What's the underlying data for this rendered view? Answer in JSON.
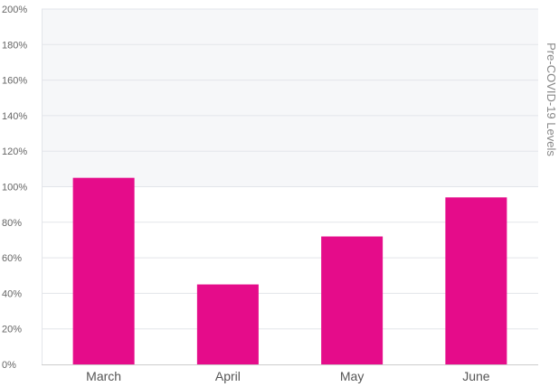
{
  "chart_data": {
    "type": "bar",
    "categories": [
      "March",
      "April",
      "May",
      "June"
    ],
    "values": [
      105,
      45,
      72,
      94
    ],
    "ylim": [
      0,
      200
    ],
    "yticks": [
      "0%",
      "20%",
      "40%",
      "60%",
      "80%",
      "100%",
      "120%",
      "140%",
      "160%",
      "180%",
      "200%"
    ],
    "band": {
      "from": 100,
      "to": 200,
      "label": "Pre-COVID-19 Levels"
    },
    "grid": true,
    "legend": "none"
  },
  "colors": {
    "bar": "#e50c8a",
    "band": "#f6f7f9",
    "grid": "#e3e5ea",
    "axis": "#cccccc"
  }
}
